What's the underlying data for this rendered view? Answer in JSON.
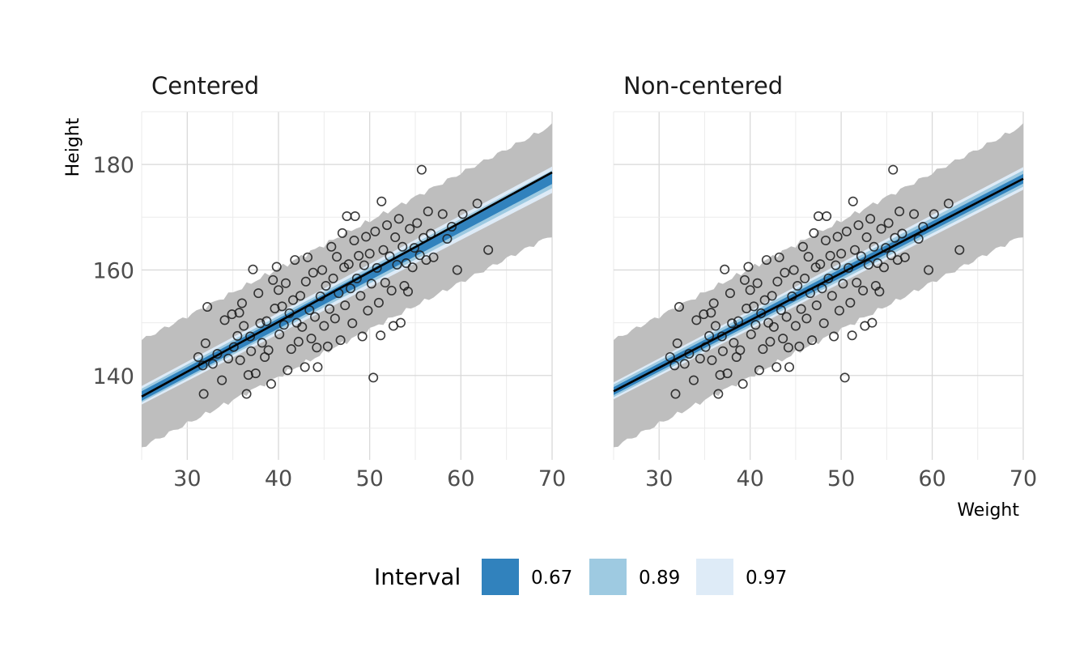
{
  "chart_data": {
    "type": "scatter",
    "xlabel": "Weight",
    "ylabel": "Height",
    "xlim": [
      25,
      70
    ],
    "ylim": [
      124,
      190
    ],
    "xticks": [
      30,
      40,
      50,
      60,
      70
    ],
    "yticks": [
      140,
      160,
      180
    ],
    "legend": {
      "title": "Interval",
      "placement": "bottom",
      "entries": [
        {
          "label": "0.67",
          "color": "#3182bd"
        },
        {
          "label": "0.89",
          "color": "#9ecae1"
        },
        {
          "label": "0.97",
          "color": "#deebf7"
        }
      ]
    },
    "colors": {
      "prediction_band": "#bebebe",
      "line": "#000000",
      "points": "#1a1a1a",
      "grid": "#d9d9d9"
    },
    "points": [
      [
        31.2,
        143.5
      ],
      [
        31.7,
        141.9
      ],
      [
        32.0,
        146.1
      ],
      [
        31.8,
        136.5
      ],
      [
        32.2,
        153.0
      ],
      [
        32.8,
        142.2
      ],
      [
        33.3,
        144.1
      ],
      [
        33.8,
        139.1
      ],
      [
        34.1,
        150.5
      ],
      [
        34.5,
        143.2
      ],
      [
        34.9,
        151.6
      ],
      [
        35.1,
        145.4
      ],
      [
        35.5,
        147.5
      ],
      [
        35.7,
        151.9
      ],
      [
        35.8,
        142.9
      ],
      [
        36.0,
        153.7
      ],
      [
        36.2,
        149.4
      ],
      [
        36.5,
        136.5
      ],
      [
        36.7,
        140.1
      ],
      [
        36.9,
        147.4
      ],
      [
        37.0,
        144.6
      ],
      [
        37.2,
        160.1
      ],
      [
        37.5,
        140.4
      ],
      [
        37.8,
        155.6
      ],
      [
        38.0,
        149.9
      ],
      [
        38.2,
        146.2
      ],
      [
        38.5,
        143.5
      ],
      [
        38.7,
        150.3
      ],
      [
        38.9,
        144.8
      ],
      [
        39.2,
        138.4
      ],
      [
        39.4,
        158.1
      ],
      [
        39.6,
        152.7
      ],
      [
        39.8,
        160.6
      ],
      [
        40.0,
        156.2
      ],
      [
        40.1,
        147.8
      ],
      [
        40.4,
        153.1
      ],
      [
        40.6,
        149.6
      ],
      [
        40.8,
        157.5
      ],
      [
        41.0,
        141.0
      ],
      [
        41.2,
        151.8
      ],
      [
        41.4,
        145.0
      ],
      [
        41.6,
        154.3
      ],
      [
        41.8,
        161.9
      ],
      [
        42.0,
        150.0
      ],
      [
        42.2,
        146.4
      ],
      [
        42.4,
        155.1
      ],
      [
        42.6,
        149.2
      ],
      [
        42.9,
        141.6
      ],
      [
        43.0,
        157.8
      ],
      [
        43.2,
        162.4
      ],
      [
        43.4,
        152.4
      ],
      [
        43.6,
        147.0
      ],
      [
        43.8,
        159.5
      ],
      [
        44.0,
        151.1
      ],
      [
        44.2,
        145.3
      ],
      [
        44.3,
        141.6
      ],
      [
        44.6,
        155.0
      ],
      [
        44.8,
        160.0
      ],
      [
        45.0,
        149.4
      ],
      [
        45.2,
        157.0
      ],
      [
        45.4,
        145.5
      ],
      [
        45.6,
        152.6
      ],
      [
        45.8,
        164.4
      ],
      [
        46.0,
        158.4
      ],
      [
        46.2,
        150.8
      ],
      [
        46.4,
        162.5
      ],
      [
        46.6,
        155.6
      ],
      [
        46.8,
        146.7
      ],
      [
        47.0,
        167.0
      ],
      [
        47.2,
        160.5
      ],
      [
        47.3,
        153.3
      ],
      [
        47.5,
        170.2
      ],
      [
        47.7,
        161.1
      ],
      [
        47.9,
        156.5
      ],
      [
        48.1,
        149.9
      ],
      [
        48.3,
        165.6
      ],
      [
        48.4,
        170.2
      ],
      [
        48.6,
        158.4
      ],
      [
        48.8,
        162.7
      ],
      [
        49.0,
        155.1
      ],
      [
        49.2,
        147.4
      ],
      [
        49.4,
        160.9
      ],
      [
        49.6,
        166.3
      ],
      [
        49.8,
        152.3
      ],
      [
        50.0,
        163.1
      ],
      [
        50.2,
        157.4
      ],
      [
        50.4,
        139.6
      ],
      [
        50.6,
        167.3
      ],
      [
        50.8,
        160.4
      ],
      [
        51.0,
        153.8
      ],
      [
        51.2,
        147.6
      ],
      [
        51.3,
        173.0
      ],
      [
        51.5,
        163.8
      ],
      [
        51.7,
        157.6
      ],
      [
        51.9,
        168.5
      ],
      [
        52.2,
        162.6
      ],
      [
        52.4,
        156.1
      ],
      [
        52.6,
        149.4
      ],
      [
        52.8,
        166.2
      ],
      [
        53.0,
        161.0
      ],
      [
        53.2,
        169.7
      ],
      [
        53.4,
        150.0
      ],
      [
        53.6,
        164.4
      ],
      [
        53.8,
        157.0
      ],
      [
        54.0,
        161.3
      ],
      [
        54.2,
        155.9
      ],
      [
        54.4,
        167.8
      ],
      [
        54.7,
        160.5
      ],
      [
        54.9,
        164.2
      ],
      [
        55.2,
        168.9
      ],
      [
        55.5,
        162.8
      ],
      [
        55.7,
        179.0
      ],
      [
        55.9,
        166.1
      ],
      [
        56.2,
        161.9
      ],
      [
        56.4,
        171.1
      ],
      [
        56.7,
        166.9
      ],
      [
        57.0,
        162.4
      ],
      [
        58.0,
        170.6
      ],
      [
        58.5,
        165.9
      ],
      [
        59.0,
        168.2
      ],
      [
        59.6,
        160.0
      ],
      [
        60.2,
        170.6
      ],
      [
        61.8,
        172.6
      ],
      [
        63.0,
        163.8
      ]
    ],
    "series": [
      {
        "name": "Centered",
        "line": [
          [
            25,
            136.0
          ],
          [
            70,
            178.5
          ]
        ],
        "band_067": {
          "lower": [
            [
              25,
              135.2
            ],
            [
              70,
              176.3
            ]
          ],
          "upper": [
            [
              25,
              137.0
            ],
            [
              70,
              178.4
            ]
          ]
        },
        "band_089": {
          "lower": [
            [
              25,
              134.9
            ],
            [
              70,
              175.5
            ]
          ],
          "upper": [
            [
              25,
              137.5
            ],
            [
              70,
              178.9
            ]
          ]
        },
        "band_097": {
          "lower": [
            [
              25,
              134.5
            ],
            [
              70,
              174.6
            ]
          ],
          "upper": [
            [
              25,
              138.0
            ],
            [
              70,
              179.6
            ]
          ]
        },
        "prediction": {
          "lower": [
            [
              25,
              126.4
            ],
            [
              70,
              166.6
            ]
          ],
          "upper": [
            [
              25,
              146.7
            ],
            [
              70,
              187.4
            ]
          ]
        }
      },
      {
        "name": "Non-centered",
        "line": [
          [
            25,
            137.0
          ],
          [
            70,
            177.3
          ]
        ],
        "band_067": {
          "lower": [
            [
              25,
              136.3
            ],
            [
              70,
              176.4
            ]
          ],
          "upper": [
            [
              25,
              137.8
            ],
            [
              70,
              178.2
            ]
          ]
        },
        "band_089": {
          "lower": [
            [
              25,
              135.9
            ],
            [
              70,
              175.8
            ]
          ],
          "upper": [
            [
              25,
              138.3
            ],
            [
              70,
              178.9
            ]
          ]
        },
        "band_097": {
          "lower": [
            [
              25,
              135.5
            ],
            [
              70,
              175.2
            ]
          ],
          "upper": [
            [
              25,
              138.7
            ],
            [
              70,
              179.5
            ]
          ]
        },
        "prediction": {
          "lower": [
            [
              25,
              126.4
            ],
            [
              70,
              166.6
            ]
          ],
          "upper": [
            [
              25,
              146.7
            ],
            [
              70,
              187.4
            ]
          ]
        }
      }
    ]
  }
}
